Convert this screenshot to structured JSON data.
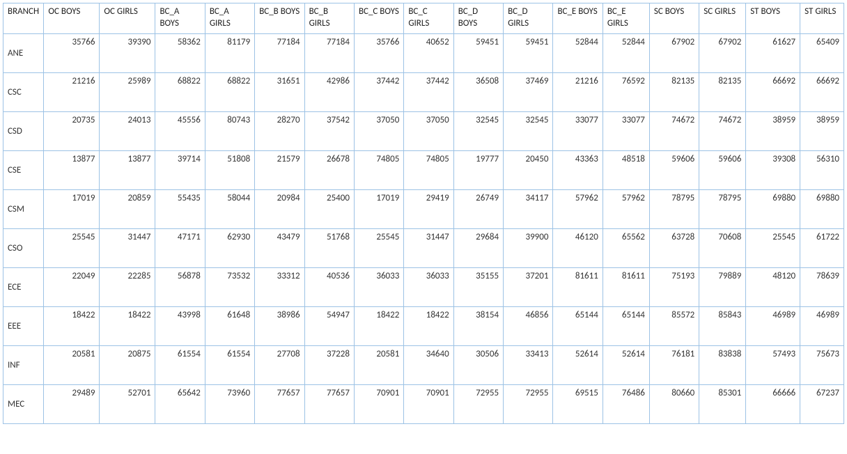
{
  "table": {
    "columns": [
      "BRANCH",
      "OC BOYS",
      "OC GIRLS",
      "BC_A BOYS",
      "BC_A GIRLS",
      "BC_B BOYS",
      "BC_B GIRLS",
      "BC_C BOYS",
      "BC_C GIRLS",
      "BC_D BOYS",
      "BC_D GIRLS",
      "BC_E BOYS",
      "BC_E GIRLS",
      "SC BOYS",
      "SC GIRLS",
      "ST BOYS",
      "ST GIRLS"
    ],
    "rows": [
      [
        "ANE",
        35766,
        39390,
        58362,
        81179,
        77184,
        77184,
        35766,
        40652,
        59451,
        59451,
        52844,
        52844,
        67902,
        67902,
        61627,
        65409
      ],
      [
        "CSC",
        21216,
        25989,
        68822,
        68822,
        31651,
        42986,
        37442,
        37442,
        36508,
        37469,
        21216,
        76592,
        82135,
        82135,
        66692,
        66692
      ],
      [
        "CSD",
        20735,
        24013,
        45556,
        80743,
        28270,
        37542,
        37050,
        37050,
        32545,
        32545,
        33077,
        33077,
        74672,
        74672,
        38959,
        38959
      ],
      [
        "CSE",
        13877,
        13877,
        39714,
        51808,
        21579,
        26678,
        74805,
        74805,
        19777,
        20450,
        43363,
        48518,
        59606,
        59606,
        39308,
        56310
      ],
      [
        "CSM",
        17019,
        20859,
        55435,
        58044,
        20984,
        25400,
        17019,
        29419,
        26749,
        34117,
        57962,
        57962,
        78795,
        78795,
        69880,
        69880
      ],
      [
        "CSO",
        25545,
        31447,
        47171,
        62930,
        43479,
        51768,
        25545,
        31447,
        29684,
        39900,
        46120,
        65562,
        63728,
        70608,
        25545,
        61722
      ],
      [
        "ECE",
        22049,
        22285,
        56878,
        73532,
        33312,
        40536,
        36033,
        36033,
        35155,
        37201,
        81611,
        81611,
        75193,
        79889,
        48120,
        78639
      ],
      [
        "EEE",
        18422,
        18422,
        43998,
        61648,
        38986,
        54947,
        18422,
        18422,
        38154,
        46856,
        65144,
        65144,
        85572,
        85843,
        46989,
        46989
      ],
      [
        "INF",
        20581,
        20875,
        61554,
        61554,
        27708,
        37228,
        20581,
        34640,
        30506,
        33413,
        52614,
        52614,
        76181,
        83838,
        57493,
        75673
      ],
      [
        "MEC",
        29489,
        52701,
        65642,
        73960,
        77657,
        77657,
        70901,
        70901,
        72955,
        72955,
        69515,
        76486,
        80660,
        85301,
        66666,
        67237
      ]
    ],
    "border_color": "#9cc2e5",
    "text_color": "#333333",
    "background_color": "#ffffff",
    "font_family": "Calibri",
    "font_size_pt": 10
  }
}
